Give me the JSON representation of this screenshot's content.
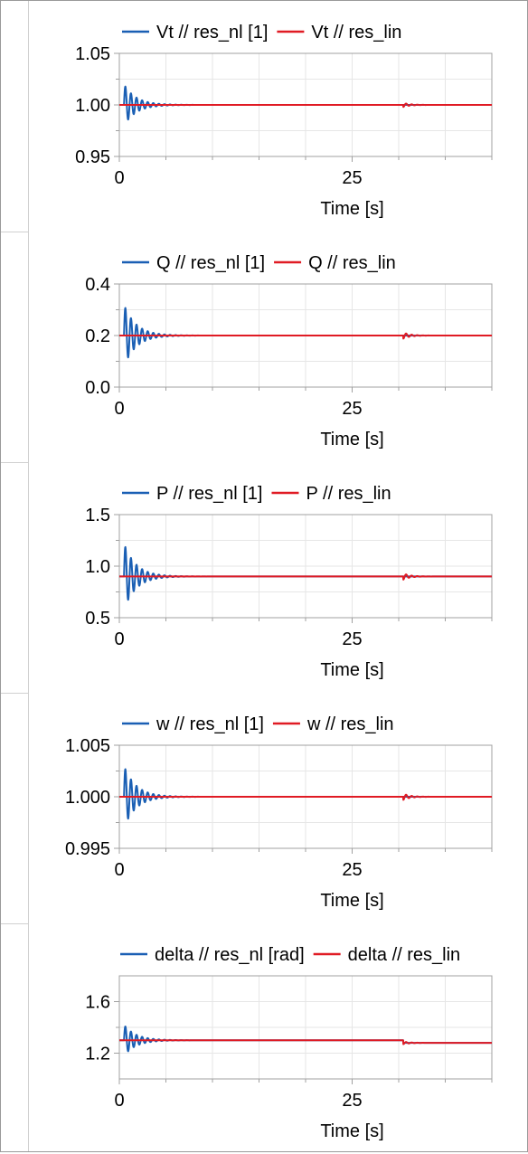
{
  "colors": {
    "blue": "#1a5fb4",
    "red": "#e01b24",
    "grid": "#e6e6e6",
    "axis": "#a0a0a0"
  },
  "chart_data": [
    {
      "type": "line",
      "xlabel": "Time [s]",
      "xlim": [
        0,
        40
      ],
      "xticks": [
        "0",
        "25"
      ],
      "xtick_values": [
        0,
        25
      ],
      "ylim": [
        0.95,
        1.05
      ],
      "yticks": [
        "1.05",
        "1.00",
        "0.95"
      ],
      "ytick_values": [
        1.05,
        1.0,
        0.95
      ],
      "legend": "top",
      "grid": true,
      "series": [
        {
          "name": "Vt // res_nl [1]",
          "color": "#1a5fb4",
          "steady": 1.0,
          "amp": 0.02,
          "period": 0.6,
          "decay": 1.3,
          "t0": 0.5,
          "final": 1.0
        },
        {
          "name": "Vt // res_lin",
          "color": "#e01b24",
          "steady": 1.0,
          "amp": 0.0,
          "final": 1.0,
          "blip_amp": 0.002
        }
      ]
    },
    {
      "type": "line",
      "xlabel": "Time [s]",
      "xlim": [
        0,
        40
      ],
      "xticks": [
        "0",
        "25"
      ],
      "xtick_values": [
        0,
        25
      ],
      "ylim": [
        0.0,
        0.4
      ],
      "yticks": [
        "0.4",
        "0.2",
        "0.0"
      ],
      "ytick_values": [
        0.4,
        0.2,
        0.0
      ],
      "legend": "top",
      "grid": true,
      "series": [
        {
          "name": "Q // res_nl [1]",
          "color": "#1a5fb4",
          "steady": 0.2,
          "amp": 0.12,
          "period": 0.6,
          "decay": 1.3,
          "t0": 0.5,
          "final": 0.2
        },
        {
          "name": "Q // res_lin",
          "color": "#e01b24",
          "steady": 0.2,
          "amp": 0.0,
          "final": 0.2,
          "blip_amp": 0.012
        }
      ]
    },
    {
      "type": "line",
      "xlabel": "Time [s]",
      "xlim": [
        0,
        40
      ],
      "xticks": [
        "0",
        "25"
      ],
      "xtick_values": [
        0,
        25
      ],
      "ylim": [
        0.5,
        1.5
      ],
      "yticks": [
        "1.5",
        "1.0",
        "0.5"
      ],
      "ytick_values": [
        1.5,
        1.0,
        0.5
      ],
      "legend": "top",
      "grid": true,
      "series": [
        {
          "name": "P // res_nl [1]",
          "color": "#1a5fb4",
          "steady": 0.9,
          "amp": 0.32,
          "period": 0.6,
          "decay": 1.3,
          "t0": 0.5,
          "final": 0.9
        },
        {
          "name": "P // res_lin",
          "color": "#e01b24",
          "steady": 0.9,
          "amp": 0.0,
          "final": 0.9,
          "blip_amp": 0.03
        }
      ]
    },
    {
      "type": "line",
      "xlabel": "Time [s]",
      "xlim": [
        0,
        40
      ],
      "xticks": [
        "0",
        "25"
      ],
      "xtick_values": [
        0,
        25
      ],
      "ylim": [
        0.995,
        1.005
      ],
      "yticks": [
        "1.005",
        "1.000",
        "0.995"
      ],
      "ytick_values": [
        1.005,
        1.0,
        0.995
      ],
      "legend": "top",
      "grid": true,
      "series": [
        {
          "name": "w // res_nl [1]",
          "color": "#1a5fb4",
          "steady": 1.0,
          "amp": 0.003,
          "period": 0.6,
          "decay": 1.3,
          "t0": 0.5,
          "final": 1.0
        },
        {
          "name": "w // res_lin",
          "color": "#e01b24",
          "steady": 1.0,
          "amp": 0.0,
          "final": 1.0,
          "blip_amp": 0.0003
        }
      ]
    },
    {
      "type": "line",
      "xlabel": "Time [s]",
      "xlim": [
        0,
        40
      ],
      "xticks": [
        "0",
        "25"
      ],
      "xtick_values": [
        0,
        25
      ],
      "ylim": [
        1.0,
        1.8
      ],
      "yticks": [
        "1.6",
        "1.2"
      ],
      "ytick_values": [
        1.6,
        1.2
      ],
      "legend": "top",
      "grid": true,
      "series": [
        {
          "name": "delta // res_nl [rad]",
          "color": "#1a5fb4",
          "steady": 1.3,
          "amp": 0.12,
          "period": 0.6,
          "decay": 1.3,
          "t0": 0.5,
          "final": 1.28
        },
        {
          "name": "delta // res_lin",
          "color": "#e01b24",
          "steady": 1.3,
          "amp": 0.0,
          "final": 1.28,
          "blip_amp": 0.01
        }
      ]
    }
  ],
  "event_time": 30.5
}
